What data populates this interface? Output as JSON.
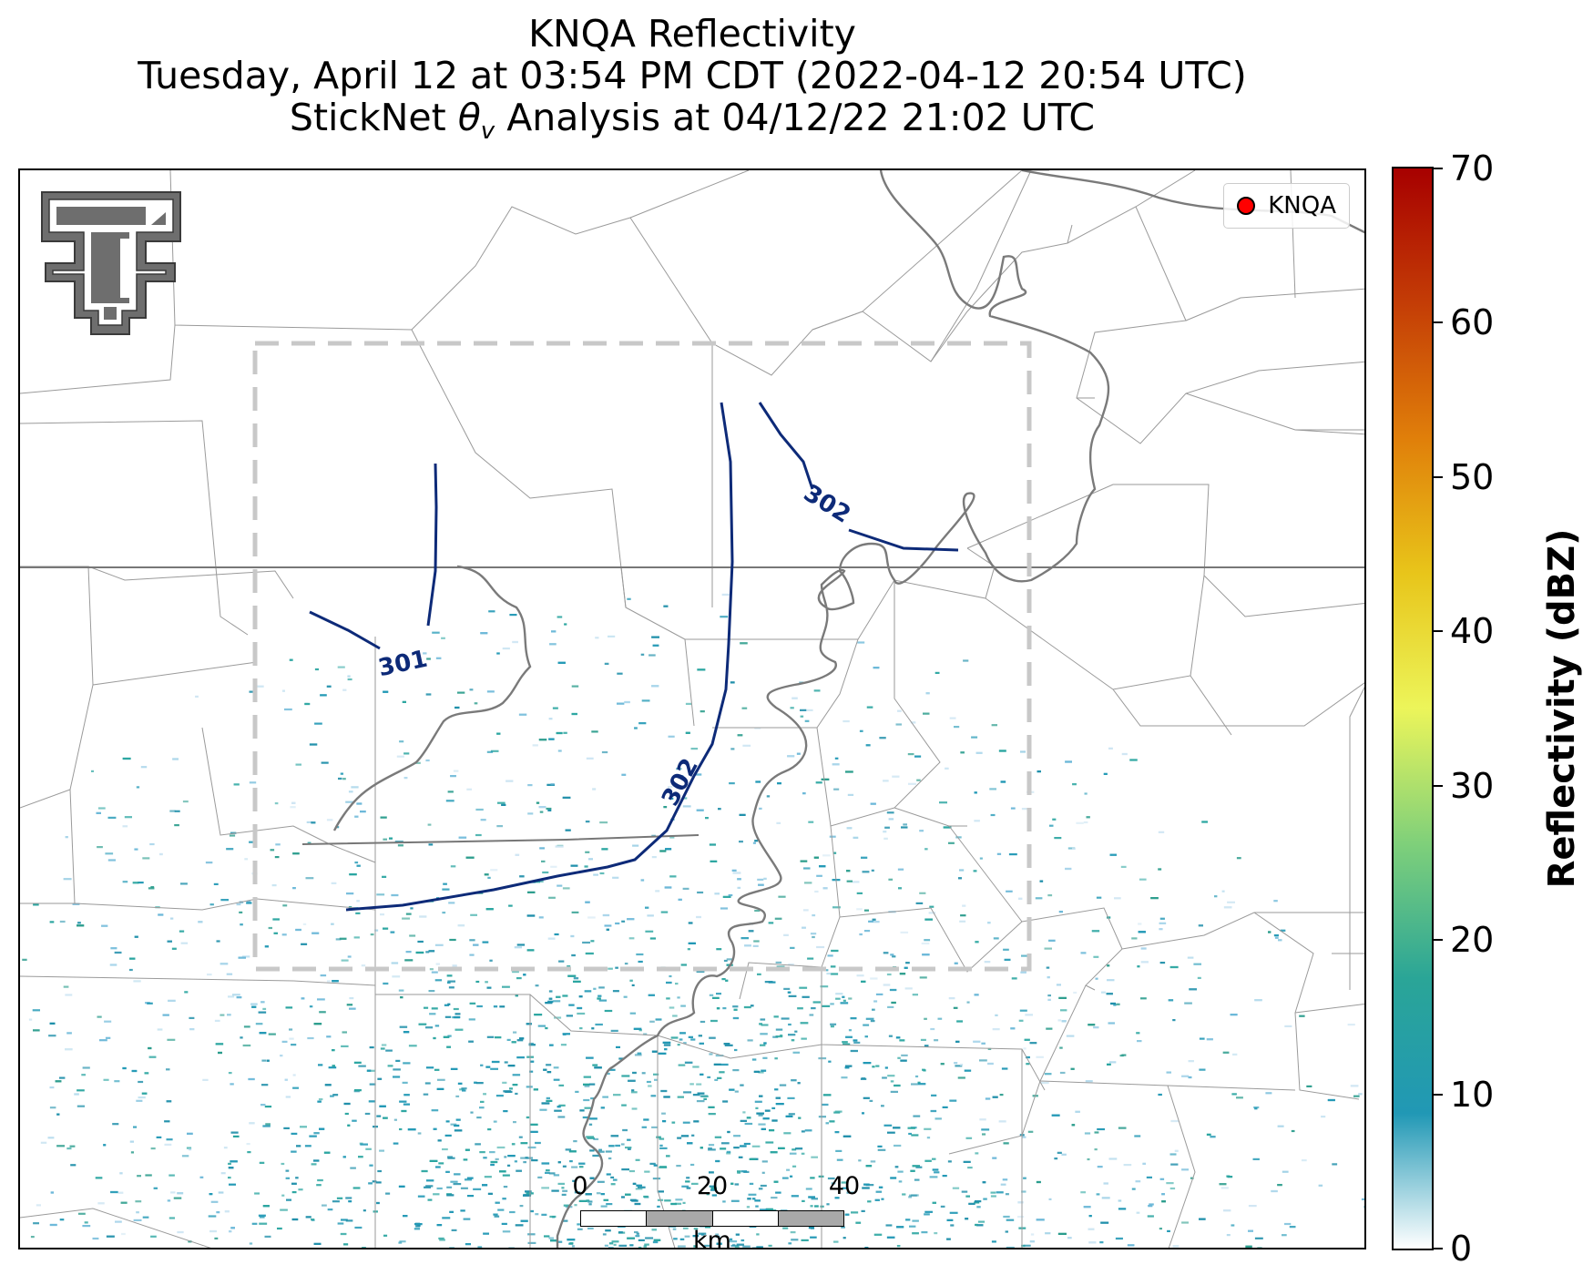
{
  "title": {
    "line1": "KNQA Reflectivity",
    "line2": "Tuesday, April 12 at 03:54 PM CDT (2022-04-12 20:54 UTC)",
    "line3_prefix": "StickNet ",
    "line3_theta": "θ",
    "line3_sub": "v",
    "line3_suffix": " Analysis at 04/12/22 21:02 UTC"
  },
  "legend": {
    "label": "KNQA",
    "marker_color": "#ff0000"
  },
  "contours": {
    "line_color": "#0d2a78",
    "labels": [
      "301",
      "302",
      "302"
    ]
  },
  "analysis_box": {
    "style": "dashed",
    "color": "#c8c8c8"
  },
  "scalebar": {
    "ticks": [
      "0",
      "20",
      "40"
    ],
    "unit": "km"
  },
  "colorbar": {
    "title": "Reflectivity (dBZ)",
    "min": 0,
    "max": 70,
    "ticks": [
      "0",
      "10",
      "20",
      "30",
      "40",
      "50",
      "60",
      "70"
    ],
    "stops": [
      "#ffffff",
      "#2198b5",
      "#2aa597",
      "#7fd07a",
      "#ecf55a",
      "#e8c51a",
      "#e07f0a",
      "#c43d06",
      "#a70000"
    ]
  },
  "logo": {
    "icon": "texas-tech-double-t-icon"
  },
  "colors": {
    "state_border": "#777777",
    "county_border": "#9a9a9a",
    "river": "#7a7a7a",
    "radar_echo": "#2198b5"
  }
}
